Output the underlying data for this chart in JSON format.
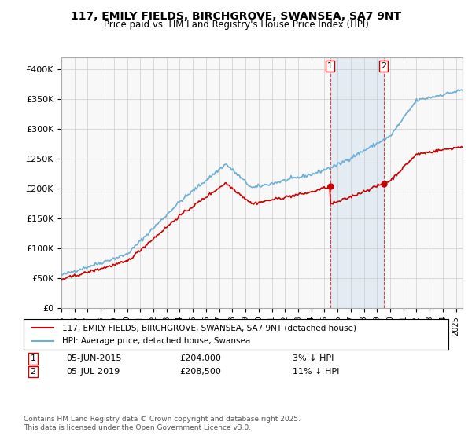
{
  "title1": "117, EMILY FIELDS, BIRCHGROVE, SWANSEA, SA7 9NT",
  "title2": "Price paid vs. HM Land Registry's House Price Index (HPI)",
  "legend1": "117, EMILY FIELDS, BIRCHGROVE, SWANSEA, SA7 9NT (detached house)",
  "legend2": "HPI: Average price, detached house, Swansea",
  "sale1_date": "05-JUN-2015",
  "sale1_price": 204000,
  "sale1_info": "3% ↓ HPI",
  "sale2_date": "05-JUL-2019",
  "sale2_price": 208500,
  "sale2_info": "11% ↓ HPI",
  "footnote": "Contains HM Land Registry data © Crown copyright and database right 2025.\nThis data is licensed under the Open Government Licence v3.0.",
  "ylim": [
    0,
    420000
  ],
  "yticks": [
    0,
    50000,
    100000,
    150000,
    200000,
    250000,
    300000,
    350000,
    400000
  ],
  "hpi_color": "#6baed6",
  "price_color": "#cc0000",
  "sale1_year": 2015.43,
  "sale2_year": 2019.5,
  "bg_color": "#ffffff",
  "plot_bg": "#f8f8f8",
  "grid_color": "#cccccc"
}
